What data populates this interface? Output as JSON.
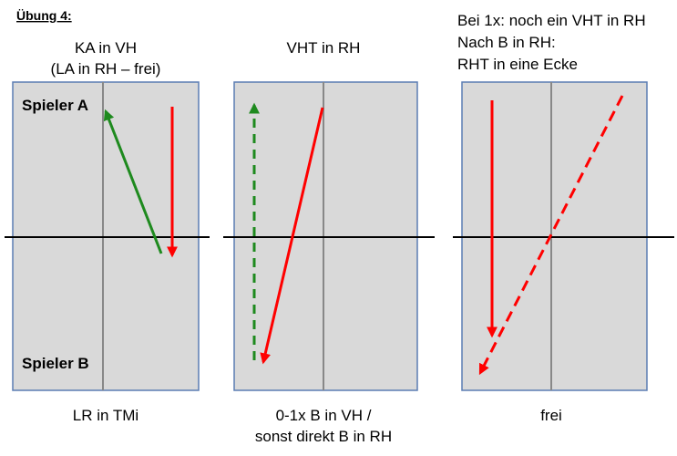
{
  "title": "Übung 4:",
  "panels": [
    {
      "top": [
        "KA in VH",
        "(LA in RH – frei)"
      ],
      "bottom": [
        "LR in TMi"
      ],
      "players": [
        "Spieler A",
        "Spieler B"
      ]
    },
    {
      "top": [
        "VHT in RH"
      ],
      "bottom": [
        "0-1x B in VH /",
        "sonst direkt B in RH"
      ]
    },
    {
      "top": [
        "Bei 1x: noch ein VHT in RH",
        "Nach B in RH:",
        "RHT in eine Ecke"
      ],
      "bottom": [
        "frei"
      ]
    }
  ]
}
